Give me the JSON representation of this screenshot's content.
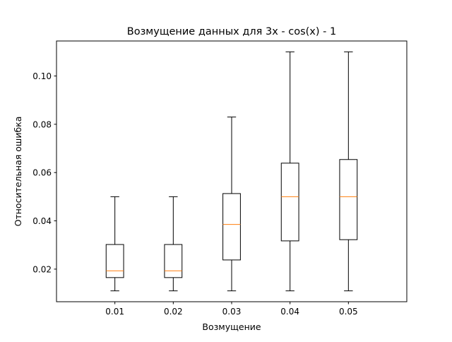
{
  "chart_data": {
    "type": "box",
    "title": "Возмущение данных для 3x - cos(x) - 1",
    "xlabel": "Возмущение",
    "ylabel": "Относительная ошибка",
    "categories": [
      "0.01",
      "0.02",
      "0.03",
      "0.04",
      "0.05"
    ],
    "boxes": [
      {
        "category": "0.01",
        "whisker_low": 0.011,
        "q1": 0.0165,
        "median": 0.0193,
        "q3": 0.0302,
        "whisker_high": 0.05
      },
      {
        "category": "0.02",
        "whisker_low": 0.011,
        "q1": 0.0165,
        "median": 0.0193,
        "q3": 0.0302,
        "whisker_high": 0.05
      },
      {
        "category": "0.03",
        "whisker_low": 0.011,
        "q1": 0.0238,
        "median": 0.0385,
        "q3": 0.0513,
        "whisker_high": 0.083
      },
      {
        "category": "0.04",
        "whisker_low": 0.011,
        "q1": 0.0317,
        "median": 0.05,
        "q3": 0.0639,
        "whisker_high": 0.11
      },
      {
        "category": "0.05",
        "whisker_low": 0.011,
        "q1": 0.0322,
        "median": 0.05,
        "q3": 0.0654,
        "whisker_high": 0.11
      }
    ],
    "yticks": [
      0.02,
      0.04,
      0.06,
      0.08,
      0.1
    ],
    "ytick_labels": [
      "0.02",
      "0.04",
      "0.06",
      "0.08",
      "0.10"
    ],
    "ylim": [
      0.0065,
      0.1145
    ],
    "xlim": [
      0,
      6
    ],
    "grid": false,
    "colors": {
      "box": "#000000",
      "median": "#ff7f0e",
      "whisker": "#000000"
    }
  }
}
